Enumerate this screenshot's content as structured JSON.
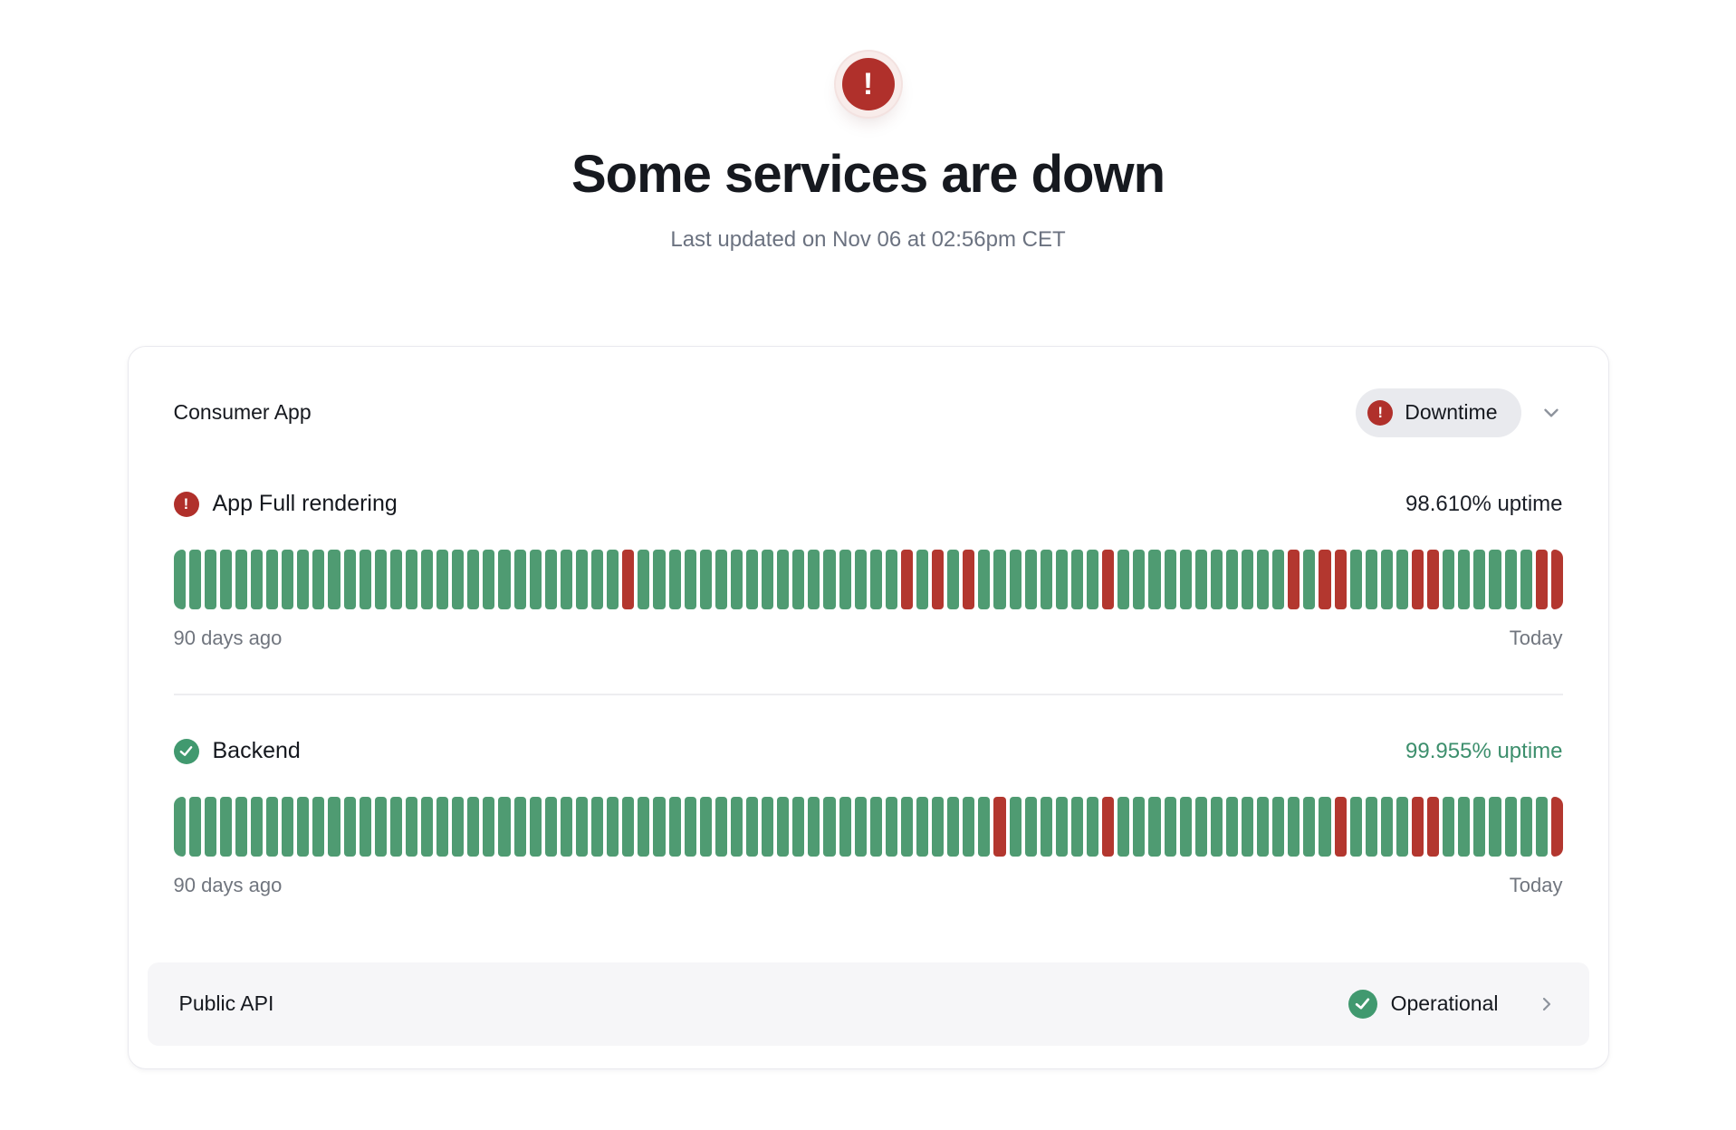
{
  "header": {
    "title": "Some services are down",
    "last_updated": "Last updated on Nov 06 at 02:56pm CET"
  },
  "group": {
    "name": "Consumer App",
    "status": {
      "label": "Downtime",
      "icon": "exclamation-circle"
    },
    "monitors": [
      {
        "name": "App Full rendering",
        "icon": "exclamation-circle",
        "uptime_label": "98.610% uptime",
        "range_start": "90 days ago",
        "range_end": "Today",
        "total_days": 90,
        "down_days": [
          29,
          47,
          49,
          51,
          60,
          72,
          74,
          75,
          80,
          81,
          88,
          89
        ]
      },
      {
        "name": "Backend",
        "icon": "check-circle",
        "uptime_label": "99.955% uptime",
        "range_start": "90 days ago",
        "range_end": "Today",
        "total_days": 90,
        "down_days": [
          53,
          60,
          75,
          80,
          81,
          89
        ]
      }
    ]
  },
  "services": [
    {
      "name": "Public API",
      "status": {
        "label": "Operational",
        "icon": "check-circle"
      }
    }
  ],
  "colors": {
    "up_bar_green": "#4F9B72",
    "down_bar_red": "#B3372F",
    "alert_red": "#B0302B",
    "check_green": "#41996F",
    "uptime_text_green": "#3D8F6D"
  }
}
